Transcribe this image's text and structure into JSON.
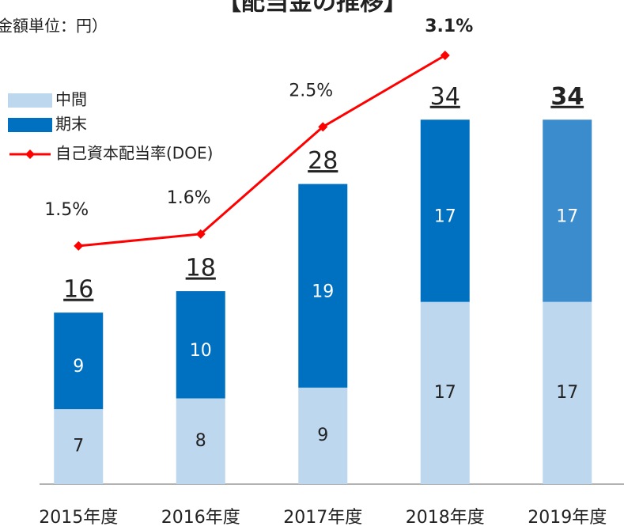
{
  "chart_data": {
    "type": "bar",
    "stacked": true,
    "title": "【配当金の推移】",
    "subtitle": "金額単位：円）",
    "categories": [
      "2015年度",
      "2016年度",
      "2017年度",
      "2018年度",
      "2019年度"
    ],
    "series": [
      {
        "name": "中間",
        "color": "#bdd7ee",
        "values": [
          7,
          8,
          9,
          17,
          17
        ]
      },
      {
        "name": "期末",
        "color": "#0070c0",
        "colors": [
          "#0070c0",
          "#0070c0",
          "#0070c0",
          "#0070c0",
          "#3a8ccc"
        ],
        "values": [
          9,
          10,
          19,
          17,
          17
        ]
      },
      {
        "name": "自己資本配当率(DOE)",
        "type": "line",
        "axis": "y2",
        "color": "#ff0000",
        "values": [
          1.5,
          1.6,
          2.5,
          3.1,
          null
        ],
        "value_labels": [
          "1.5%",
          "1.6%",
          "2.5%",
          "3.1%",
          null
        ]
      }
    ],
    "totals": [
      16,
      18,
      28,
      34,
      34
    ],
    "ylim": [
      0,
      40
    ],
    "y2lim": [
      -0.5,
      3.1
    ]
  }
}
